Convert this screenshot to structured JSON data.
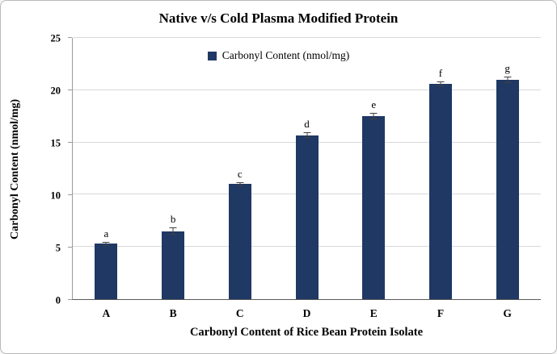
{
  "chart_data": {
    "type": "bar",
    "title": "Native v/s Cold Plasma Modified Protein",
    "legend_label": "Carbonyl Content (nmol/mg)",
    "xlabel": "Carbonyl Content of Rice Bean Protein Isolate",
    "ylabel": "Carbonyl Content (nmol/mg)",
    "categories": [
      "A",
      "B",
      "C",
      "D",
      "E",
      "F",
      "G"
    ],
    "values": [
      5.3,
      6.5,
      11.0,
      15.7,
      17.5,
      20.6,
      21.0
    ],
    "errors": [
      0.2,
      0.35,
      0.2,
      0.3,
      0.3,
      0.2,
      0.3
    ],
    "bar_labels": [
      "a",
      "b",
      "c",
      "d",
      "e",
      "f",
      "g"
    ],
    "ylim": [
      0,
      25
    ],
    "yticks": [
      0,
      5,
      10,
      15,
      20,
      25
    ],
    "grid": true,
    "legend_position": "top",
    "bar_color": "#1f3864",
    "gridline_color": "#d9d9d9"
  }
}
